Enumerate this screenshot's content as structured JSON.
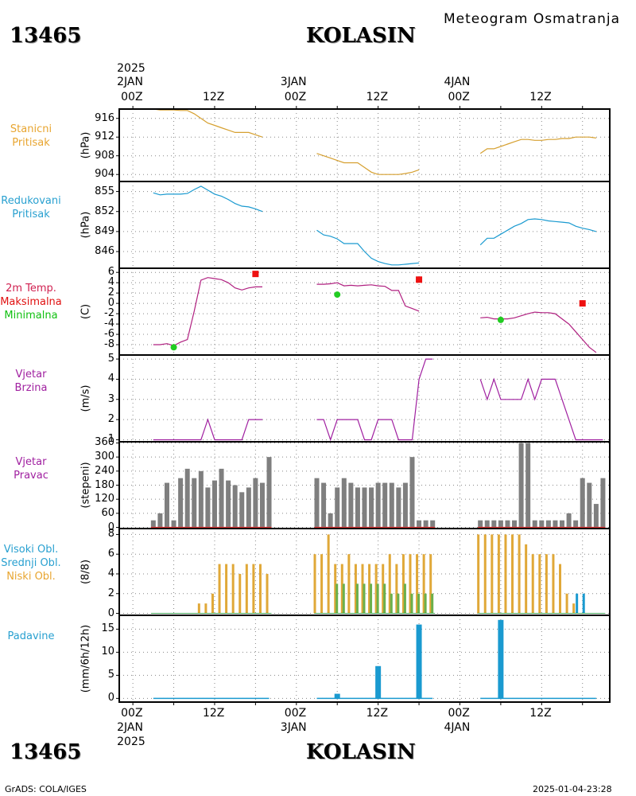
{
  "header": {
    "subtitle": "Meteogram Osmatranja",
    "station_id": "13465",
    "station_name": "KOLASIN",
    "top_year": "2025",
    "top_dates": [
      "2JAN",
      "3JAN",
      "4JAN"
    ],
    "top_hours": [
      "00Z",
      "12Z",
      "00Z",
      "12Z",
      "00Z",
      "12Z"
    ]
  },
  "bottom_axis": {
    "hours": [
      "00Z",
      "12Z",
      "00Z",
      "12Z",
      "00Z",
      "12Z"
    ],
    "dates": [
      "2JAN",
      "3JAN",
      "4JAN"
    ],
    "year": "2025"
  },
  "footer": {
    "station_id": "13465",
    "station_name": "KOLASIN",
    "credit": "GrADS: COLA/IGES",
    "timestamp": "2025-01-04-23:28"
  },
  "chart_data": [
    {
      "type": "line",
      "labels": [
        "Stanicni",
        "Pritisak"
      ],
      "label_color": "#e8a530",
      "unit": "(hPa)",
      "yticks": [
        916,
        912,
        908,
        904
      ],
      "ylim": [
        902.5,
        918
      ],
      "series": [
        {
          "color": "#d6a030",
          "segments": [
            {
              "start_hour": 3,
              "values": [
                918.0,
                917.8,
                917.8,
                917.8,
                917.7,
                917.7,
                917.0,
                916.0,
                915.0,
                914.5,
                914.0,
                913.5,
                913.0,
                913.0,
                913.0,
                912.5,
                912.0
              ]
            },
            {
              "start_hour": 27,
              "values": [
                908.5,
                908.0,
                907.5,
                907.0,
                906.5,
                906.5,
                906.5,
                905.5,
                904.5,
                904.0,
                904.0,
                904.0,
                904.0,
                904.2,
                904.5,
                905.0
              ]
            },
            {
              "start_hour": 51,
              "values": [
                908.5,
                909.5,
                909.5,
                910.0,
                910.5,
                911.0,
                911.5,
                911.5,
                911.3,
                911.3,
                911.5,
                911.5,
                911.7,
                911.7,
                912.0,
                912.0,
                912.0,
                911.8
              ]
            }
          ]
        }
      ]
    },
    {
      "type": "line",
      "labels": [
        "Redukovani",
        "Pritisak"
      ],
      "label_color": "#28a0d0",
      "unit": "(hPa)",
      "yticks": [
        855,
        852,
        849,
        846
      ],
      "ylim": [
        843.5,
        856.5
      ],
      "series": [
        {
          "color": "#1a9ad0",
          "segments": [
            {
              "start_hour": 3,
              "values": [
                854.8,
                854.5,
                854.6,
                854.6,
                854.6,
                854.7,
                855.3,
                855.8,
                855.2,
                854.6,
                854.3,
                853.8,
                853.2,
                852.8,
                852.7,
                852.4,
                852.0
              ]
            },
            {
              "start_hour": 27,
              "values": [
                849.2,
                848.5,
                848.3,
                847.9,
                847.2,
                847.2,
                847.2,
                846.0,
                845.0,
                844.5,
                844.2,
                844.0,
                844.0,
                844.1,
                844.2,
                844.3
              ]
            },
            {
              "start_hour": 51,
              "values": [
                847.0,
                848.0,
                848.0,
                848.6,
                849.2,
                849.8,
                850.2,
                850.8,
                850.9,
                850.8,
                850.6,
                850.5,
                850.4,
                850.3,
                849.8,
                849.5,
                849.3,
                849.0
              ]
            }
          ]
        }
      ]
    },
    {
      "type": "line",
      "labels": [
        "2m Temp.",
        "Maksimalna",
        "Minimalna"
      ],
      "label_colors": [
        "#d02050",
        "#e01010",
        "#10c010"
      ],
      "unit": "(C)",
      "yticks": [
        6,
        4,
        2,
        0,
        -2,
        -4,
        -6,
        -8
      ],
      "ylim": [
        -10,
        6.8
      ],
      "series": [
        {
          "name": "2m Temp.",
          "color": "#b02080",
          "segments": [
            {
              "start_hour": 3,
              "values": [
                -8.0,
                -8.0,
                -7.8,
                -8.2,
                -7.5,
                -7.0,
                -1.5,
                4.5,
                5.0,
                4.8,
                4.6,
                4.0,
                3.0,
                2.6,
                3.0,
                3.2,
                3.2
              ]
            },
            {
              "start_hour": 27,
              "values": [
                3.7,
                3.7,
                3.8,
                4.0,
                3.4,
                3.5,
                3.4,
                3.5,
                3.6,
                3.4,
                3.3,
                2.5,
                2.5,
                -0.5,
                -1.0,
                -1.5
              ]
            },
            {
              "start_hour": 51,
              "values": [
                -2.8,
                -2.7,
                -3.0,
                -3.0,
                -3.0,
                -2.8,
                -2.4,
                -2.0,
                -1.7,
                -1.8,
                -1.8,
                -2.0,
                -3.0,
                -4.0,
                -5.5,
                -7.0,
                -8.5,
                -9.5
              ]
            }
          ]
        }
      ],
      "max_points": [
        {
          "hour": 18,
          "value": 5.7
        },
        {
          "hour": 42,
          "value": 4.6
        },
        {
          "hour": 66,
          "value": 0.0
        }
      ],
      "min_points": [
        {
          "hour": 6,
          "value": -8.5
        },
        {
          "hour": 30,
          "value": 1.7
        },
        {
          "hour": 54,
          "value": -3.2
        }
      ]
    },
    {
      "type": "line",
      "labels": [
        "Vjetar",
        "Brzina"
      ],
      "label_color": "#a020a0",
      "unit": "(m/s)",
      "yticks": [
        5,
        4,
        3,
        2,
        1
      ],
      "ylim": [
        0.9,
        5.2
      ],
      "series": [
        {
          "color": "#a020a0",
          "segments": [
            {
              "start_hour": 3,
              "values": [
                1,
                1,
                1,
                1,
                1,
                1,
                1,
                1,
                2,
                1,
                1,
                1,
                1,
                1,
                2,
                2,
                2
              ]
            },
            {
              "start_hour": 27,
              "values": [
                2,
                2,
                1,
                2,
                2,
                2,
                2,
                1,
                1,
                2,
                2,
                2,
                1,
                1,
                1,
                4,
                5,
                5
              ]
            },
            {
              "start_hour": 51,
              "values": [
                4,
                3,
                4,
                3,
                3,
                3,
                3,
                4,
                3,
                4,
                4,
                4,
                3,
                2,
                1,
                1,
                1,
                1,
                1
              ]
            }
          ]
        }
      ]
    },
    {
      "type": "bar",
      "labels": [
        "Vjetar",
        "Pravac"
      ],
      "label_color": "#a020a0",
      "unit": "(stepeni)",
      "yticks": [
        360,
        300,
        240,
        180,
        120,
        60,
        0
      ],
      "ylim": [
        -5,
        365
      ],
      "series": [
        {
          "color": "#7f7f7f",
          "segments": [
            {
              "start_hour": 3,
              "values": [
                30,
                60,
                190,
                30,
                210,
                250,
                210,
                240,
                170,
                200,
                250,
                200,
                180,
                150,
                170,
                210,
                190,
                300
              ]
            },
            {
              "start_hour": 27,
              "values": [
                210,
                190,
                60,
                170,
                210,
                190,
                170,
                170,
                170,
                190,
                190,
                190,
                170,
                190,
                300,
                30,
                30,
                30
              ]
            },
            {
              "start_hour": 51,
              "values": [
                30,
                30,
                30,
                30,
                30,
                30,
                360,
                360,
                30,
                30,
                30,
                30,
                30,
                60,
                30,
                210,
                190,
                100,
                210
              ]
            }
          ]
        }
      ]
    },
    {
      "type": "bar",
      "labels": [
        "Visoki Obl.",
        "Srednji Obl.",
        "Niski Obl."
      ],
      "label_colors": [
        "#28a0d0",
        "#28a0d0",
        "#e8a530"
      ],
      "unit": "(8/8)",
      "yticks": [
        8,
        6,
        4,
        2,
        0
      ],
      "ylim": [
        -0.2,
        8.6
      ],
      "series": [
        {
          "name": "Niski Obl.",
          "color": "#e0a838",
          "segments": [
            {
              "start_hour": 3,
              "values": [
                0,
                0,
                0,
                0,
                0,
                0,
                0,
                1,
                1,
                2,
                5,
                5,
                5,
                4,
                5,
                5,
                5,
                4
              ]
            },
            {
              "start_hour": 27,
              "values": [
                6,
                6,
                8,
                5,
                5,
                6,
                5,
                5,
                5,
                5,
                5,
                6,
                5,
                6,
                6,
                6,
                6,
                6
              ]
            },
            {
              "start_hour": 51,
              "values": [
                8,
                8,
                8,
                8,
                8,
                8,
                8,
                7,
                6,
                6,
                6,
                6,
                5,
                2,
                1,
                0,
                0,
                0,
                0
              ]
            }
          ]
        },
        {
          "name": "Srednji Obl.",
          "color": "#6ab04c",
          "segments": [
            {
              "start_hour": 3,
              "values": [
                0,
                0,
                0,
                0,
                0,
                0,
                0,
                0,
                0,
                0,
                0,
                0,
                0,
                0,
                0,
                0,
                0,
                0
              ]
            },
            {
              "start_hour": 27,
              "values": [
                0,
                0,
                0,
                3,
                3,
                0,
                3,
                3,
                3,
                3,
                3,
                2,
                2,
                3,
                2,
                2,
                2,
                2
              ]
            },
            {
              "start_hour": 51,
              "values": [
                0,
                0,
                0,
                0,
                0,
                0,
                0,
                0,
                0,
                0,
                0,
                0,
                0,
                0,
                0,
                0,
                0,
                0,
                0
              ]
            }
          ]
        },
        {
          "name": "Visoki Obl.",
          "color": "#1a9ad0",
          "segments": [
            {
              "start_hour": 3,
              "values": [
                0,
                0,
                0,
                0,
                0,
                0,
                0,
                0,
                0,
                0,
                0,
                0,
                0,
                0,
                0,
                0,
                0,
                0
              ]
            },
            {
              "start_hour": 27,
              "values": [
                0,
                0,
                0,
                0,
                0,
                0,
                0,
                0,
                0,
                0,
                0,
                0,
                0,
                0,
                0,
                0,
                0,
                0
              ]
            },
            {
              "start_hour": 51,
              "values": [
                0,
                0,
                0,
                0,
                0,
                0,
                0,
                0,
                0,
                0,
                0,
                0,
                0,
                0,
                2,
                2,
                0,
                0,
                0
              ]
            }
          ]
        }
      ]
    },
    {
      "type": "bar",
      "labels": [
        "Padavine"
      ],
      "label_color": "#28a0d0",
      "unit": "(mm/6h/12h)",
      "yticks": [
        15,
        10,
        5,
        0
      ],
      "ylim": [
        -0.8,
        18
      ],
      "series": [
        {
          "color": "#1a9ad0",
          "bars": [
            {
              "hour": 30,
              "value": 1.0
            },
            {
              "hour": 36,
              "value": 7.0
            },
            {
              "hour": 42,
              "value": 16.0
            },
            {
              "hour": 54,
              "value": 17.0
            }
          ],
          "trace_segments": [
            [
              3,
              20
            ],
            [
              27,
              44
            ],
            [
              51,
              68
            ]
          ]
        }
      ]
    }
  ]
}
